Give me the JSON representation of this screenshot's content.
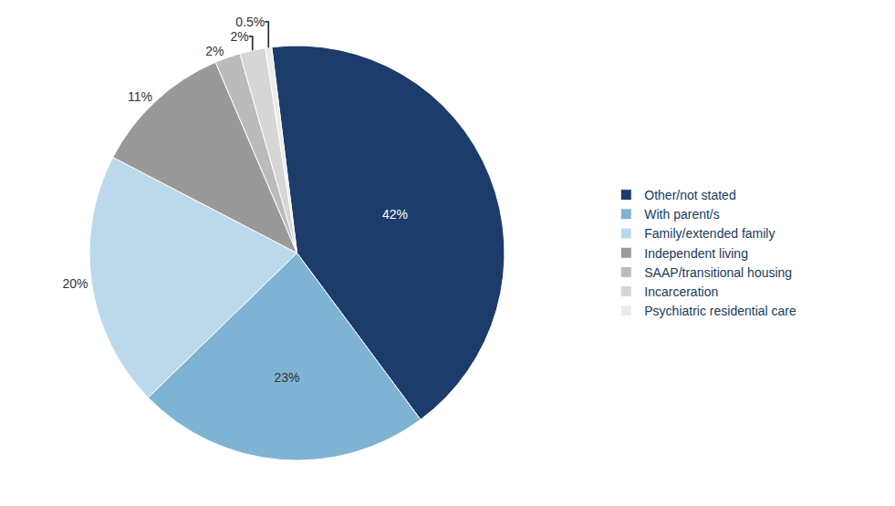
{
  "chart_data": {
    "type": "pie",
    "categories": [
      "Other/not stated",
      "With parent/s",
      "Family/extended family",
      "Independent living",
      "SAAP/transitional housing",
      "Incarceration",
      "Psychiatric residential care"
    ],
    "values": [
      42.0,
      23.0,
      20.0,
      11.0,
      2.0,
      2.0,
      0.5
    ],
    "value_labels": [
      "42%",
      "23%",
      "20%",
      "11%",
      "2%",
      "2%",
      "0.5%"
    ],
    "colors": [
      "#1c3d6b",
      "#7fb3d3",
      "#bcd9ec",
      "#999999",
      "#bbbbbb",
      "#d6d6d6",
      "#ebebeb"
    ],
    "data_labels": true,
    "legend": "right"
  }
}
